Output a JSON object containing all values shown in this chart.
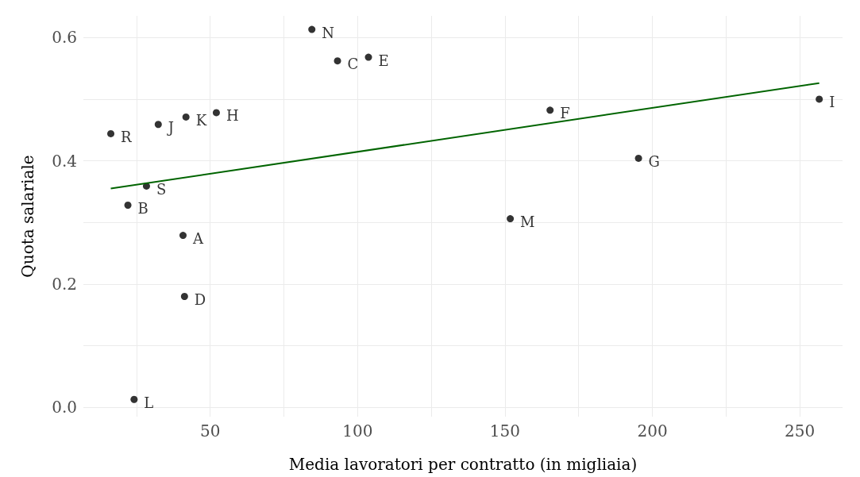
{
  "chart_data": {
    "type": "scatter",
    "xlabel": "Media lavoratori per contratto (in migliaia)",
    "ylabel": "Quota salariale",
    "xlim": [
      7,
      264.5
    ],
    "ylim": [
      -0.015,
      0.635
    ],
    "xticks": [
      {
        "value": 25,
        "label": null
      },
      50,
      {
        "value": 75,
        "label": null
      },
      100,
      {
        "value": 125,
        "label": null
      },
      150,
      {
        "value": 175,
        "label": null
      },
      200,
      {
        "value": 225,
        "label": null
      },
      250
    ],
    "yticks": [
      {
        "value": 0,
        "label": "0.0"
      },
      {
        "value": 0.1,
        "label": null
      },
      {
        "value": 0.2,
        "label": "0.2"
      },
      {
        "value": 0.3,
        "label": null
      },
      {
        "value": 0.4,
        "label": "0.4"
      },
      {
        "value": 0.5,
        "label": null
      },
      {
        "value": 0.6,
        "label": "0.6"
      }
    ],
    "grid": true,
    "marker": "circle",
    "series": [
      {
        "color": "#000000",
        "x": [
          84.5,
          93.2,
          103.7,
          52.1,
          41.8,
          32.4,
          16.3,
          165.3,
          256.6,
          195.3,
          28.4,
          22.1,
          40.8,
          151.8,
          41.3,
          24.2
        ],
        "values": [
          0.613,
          0.562,
          0.568,
          0.478,
          0.471,
          0.459,
          0.444,
          0.482,
          0.5,
          0.404,
          0.359,
          0.328,
          0.279,
          0.306,
          0.18,
          0.013
        ],
        "value_labels": [
          "N",
          "C",
          "E",
          "H",
          "K",
          "J",
          "R",
          "F",
          "I",
          "G",
          "S",
          "B",
          "A",
          "M",
          "D",
          "L"
        ]
      },
      {
        "type": "line",
        "color": "#006400",
        "x": [
          16.3,
          256.6
        ],
        "values": [
          0.355,
          0.526
        ],
        "marker": "none"
      }
    ]
  }
}
